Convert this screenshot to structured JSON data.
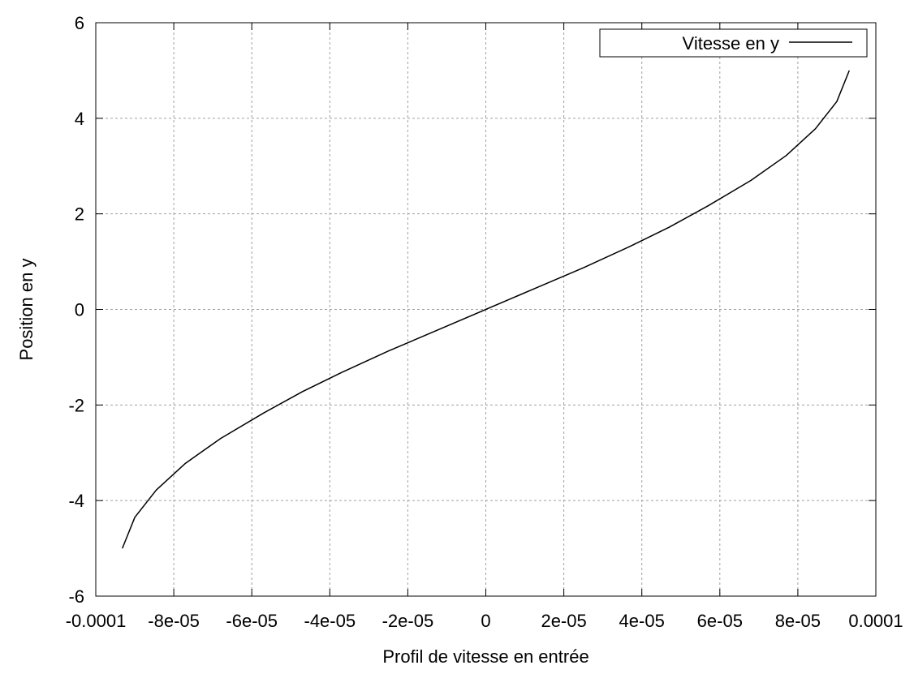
{
  "chart_data": {
    "type": "line",
    "title": "",
    "xlabel": "Profil de vitesse en entrée",
    "ylabel": "Position en y",
    "xlim": [
      -0.0001,
      0.0001
    ],
    "ylim": [
      -6,
      6
    ],
    "x_ticks": [
      -0.0001,
      -8e-05,
      -6e-05,
      -4e-05,
      -2e-05,
      0,
      2e-05,
      4e-05,
      6e-05,
      8e-05,
      0.0001
    ],
    "x_tick_labels": [
      "-0.0001",
      "-8e-05",
      "-6e-05",
      "-4e-05",
      "-2e-05",
      "0",
      "2e-05",
      "4e-05",
      "6e-05",
      "8e-05",
      "0.0001"
    ],
    "y_ticks": [
      -6,
      -4,
      -2,
      0,
      2,
      4,
      6
    ],
    "y_tick_labels": [
      "-6",
      "-4",
      "-2",
      "0",
      "2",
      "4",
      "6"
    ],
    "grid": true,
    "legend_position": "top-right",
    "series": [
      {
        "name": "Vitesse en y",
        "color": "#000000",
        "points": [
          [
            -9.32e-05,
            -5.0
          ],
          [
            -9e-05,
            -4.35
          ],
          [
            -8.45e-05,
            -3.78
          ],
          [
            -7.7e-05,
            -3.22
          ],
          [
            -6.8e-05,
            -2.7
          ],
          [
            -5.7e-05,
            -2.17
          ],
          [
            -4.7e-05,
            -1.72
          ],
          [
            -3.7e-05,
            -1.32
          ],
          [
            -2.5e-05,
            -0.87
          ],
          [
            -1.2e-05,
            -0.42
          ],
          [
            0.0,
            0.0
          ],
          [
            1.2e-05,
            0.42
          ],
          [
            2.5e-05,
            0.87
          ],
          [
            3.7e-05,
            1.32
          ],
          [
            4.7e-05,
            1.72
          ],
          [
            5.7e-05,
            2.17
          ],
          [
            6.8e-05,
            2.7
          ],
          [
            7.7e-05,
            3.22
          ],
          [
            8.45e-05,
            3.78
          ],
          [
            9e-05,
            4.35
          ],
          [
            9.32e-05,
            5.0
          ]
        ]
      }
    ]
  }
}
